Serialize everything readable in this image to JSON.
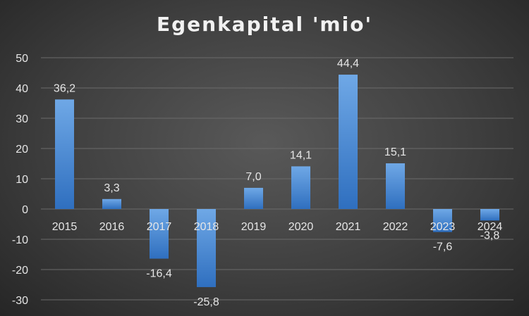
{
  "chart_data": {
    "type": "bar",
    "title": "Egenkapital 'mio'",
    "categories": [
      "2015",
      "2016",
      "2017",
      "2018",
      "2019",
      "2020",
      "2021",
      "2022",
      "2023",
      "2024"
    ],
    "values": [
      36.2,
      3.3,
      -16.4,
      -25.8,
      7.0,
      14.1,
      44.4,
      15.1,
      -7.6,
      -3.8
    ],
    "data_labels": [
      "36,2",
      "3,3",
      "-16,4",
      "-25,8",
      "7,0",
      "14,1",
      "44,4",
      "15,1",
      "-7,6",
      "-3,8"
    ],
    "y_ticks": [
      50,
      40,
      30,
      20,
      10,
      0,
      -10,
      -20,
      -30
    ],
    "ylim": [
      -30,
      50
    ],
    "xlabel": "",
    "ylabel": "",
    "grid": true,
    "legend": "none",
    "colors": {
      "bar_top": "#6fa8e6",
      "bar_bottom": "#2f6fbf",
      "gridline": "#6b6b6b",
      "text": "#e6e6e6"
    }
  }
}
